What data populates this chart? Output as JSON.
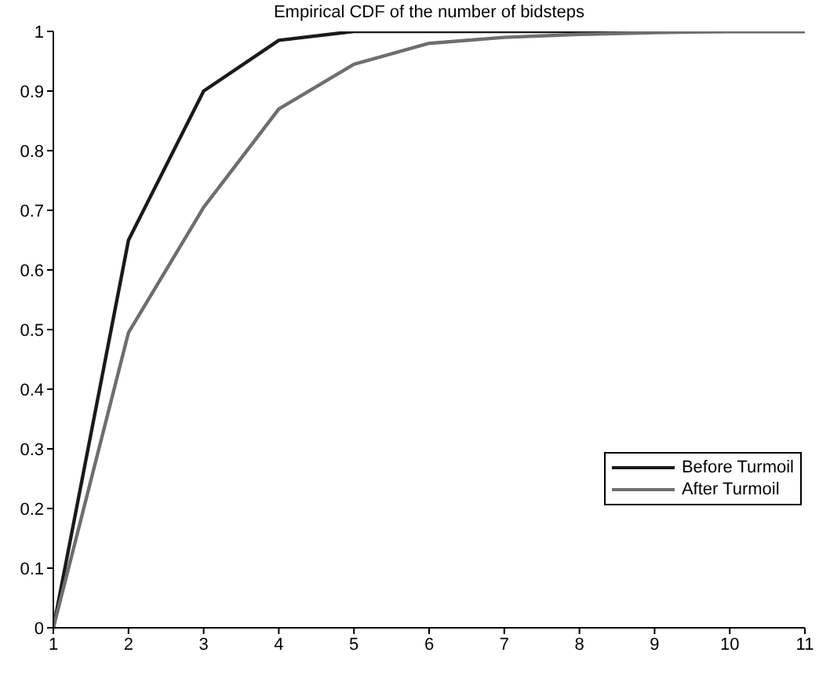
{
  "chart_data": {
    "type": "line",
    "title": "Empirical CDF of the number of bidsteps",
    "x": [
      1,
      2,
      3,
      4,
      5,
      6,
      7,
      8,
      9,
      10,
      11
    ],
    "series": [
      {
        "name": "Before Turmoil",
        "color": "#1a1a1a",
        "values": [
          0,
          0.65,
          0.9,
          0.985,
          1,
          1,
          1,
          1,
          1,
          1,
          1
        ]
      },
      {
        "name": "After Turmoil",
        "color": "#6e6e6e",
        "values": [
          0,
          0.495,
          0.705,
          0.87,
          0.945,
          0.98,
          0.99,
          0.995,
          0.998,
          1,
          1
        ]
      }
    ],
    "xlim": [
      1,
      11
    ],
    "xticks": [
      1,
      2,
      3,
      4,
      5,
      6,
      7,
      8,
      9,
      10,
      11
    ],
    "ylim": [
      0,
      1
    ],
    "yticks": [
      0,
      0.1,
      0.2,
      0.3,
      0.4,
      0.5,
      0.6,
      0.7,
      0.8,
      0.9,
      1
    ],
    "grid": false,
    "legend": "right",
    "marker": "none",
    "line_style": "solid"
  }
}
